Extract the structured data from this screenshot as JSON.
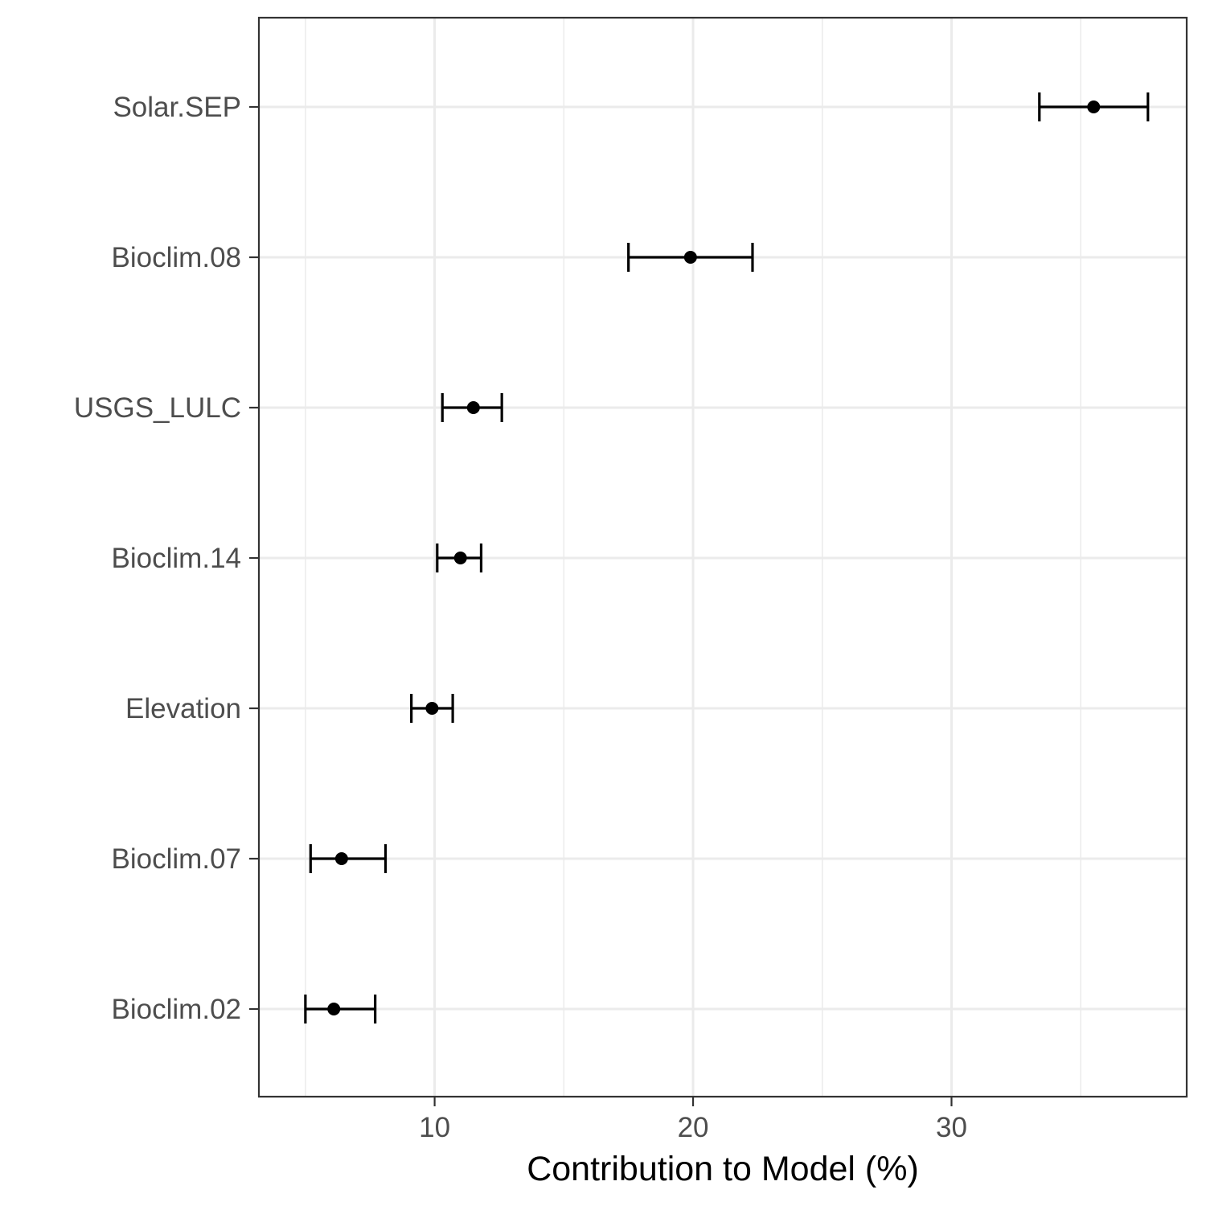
{
  "chart_data": {
    "type": "scatter",
    "orientation": "horizontal",
    "title": "",
    "xlabel": "Contribution to Model (%)",
    "ylabel": "",
    "xlim": [
      3.2,
      39.1
    ],
    "x_ticks": [
      10,
      20,
      30
    ],
    "x_minor_ticks": [
      5,
      15,
      25,
      35
    ],
    "grid": true,
    "legend": "none",
    "categories": [
      "Solar.SEP",
      "Bioclim.08",
      "USGS_LULC",
      "Bioclim.14",
      "Elevation",
      "Bioclim.07",
      "Bioclim.02"
    ],
    "series": [
      {
        "values": [
          35.5,
          19.9,
          11.5,
          11.0,
          9.9,
          6.4,
          6.1
        ],
        "lower": [
          33.4,
          17.5,
          10.3,
          10.1,
          9.1,
          5.2,
          5.0
        ],
        "upper": [
          37.6,
          22.3,
          12.6,
          11.8,
          10.7,
          8.1,
          7.7
        ]
      }
    ],
    "colors": {
      "point": "#000000",
      "grid": "#ebebeb",
      "border": "#333333",
      "tick_label": "#4d4d4d"
    }
  }
}
